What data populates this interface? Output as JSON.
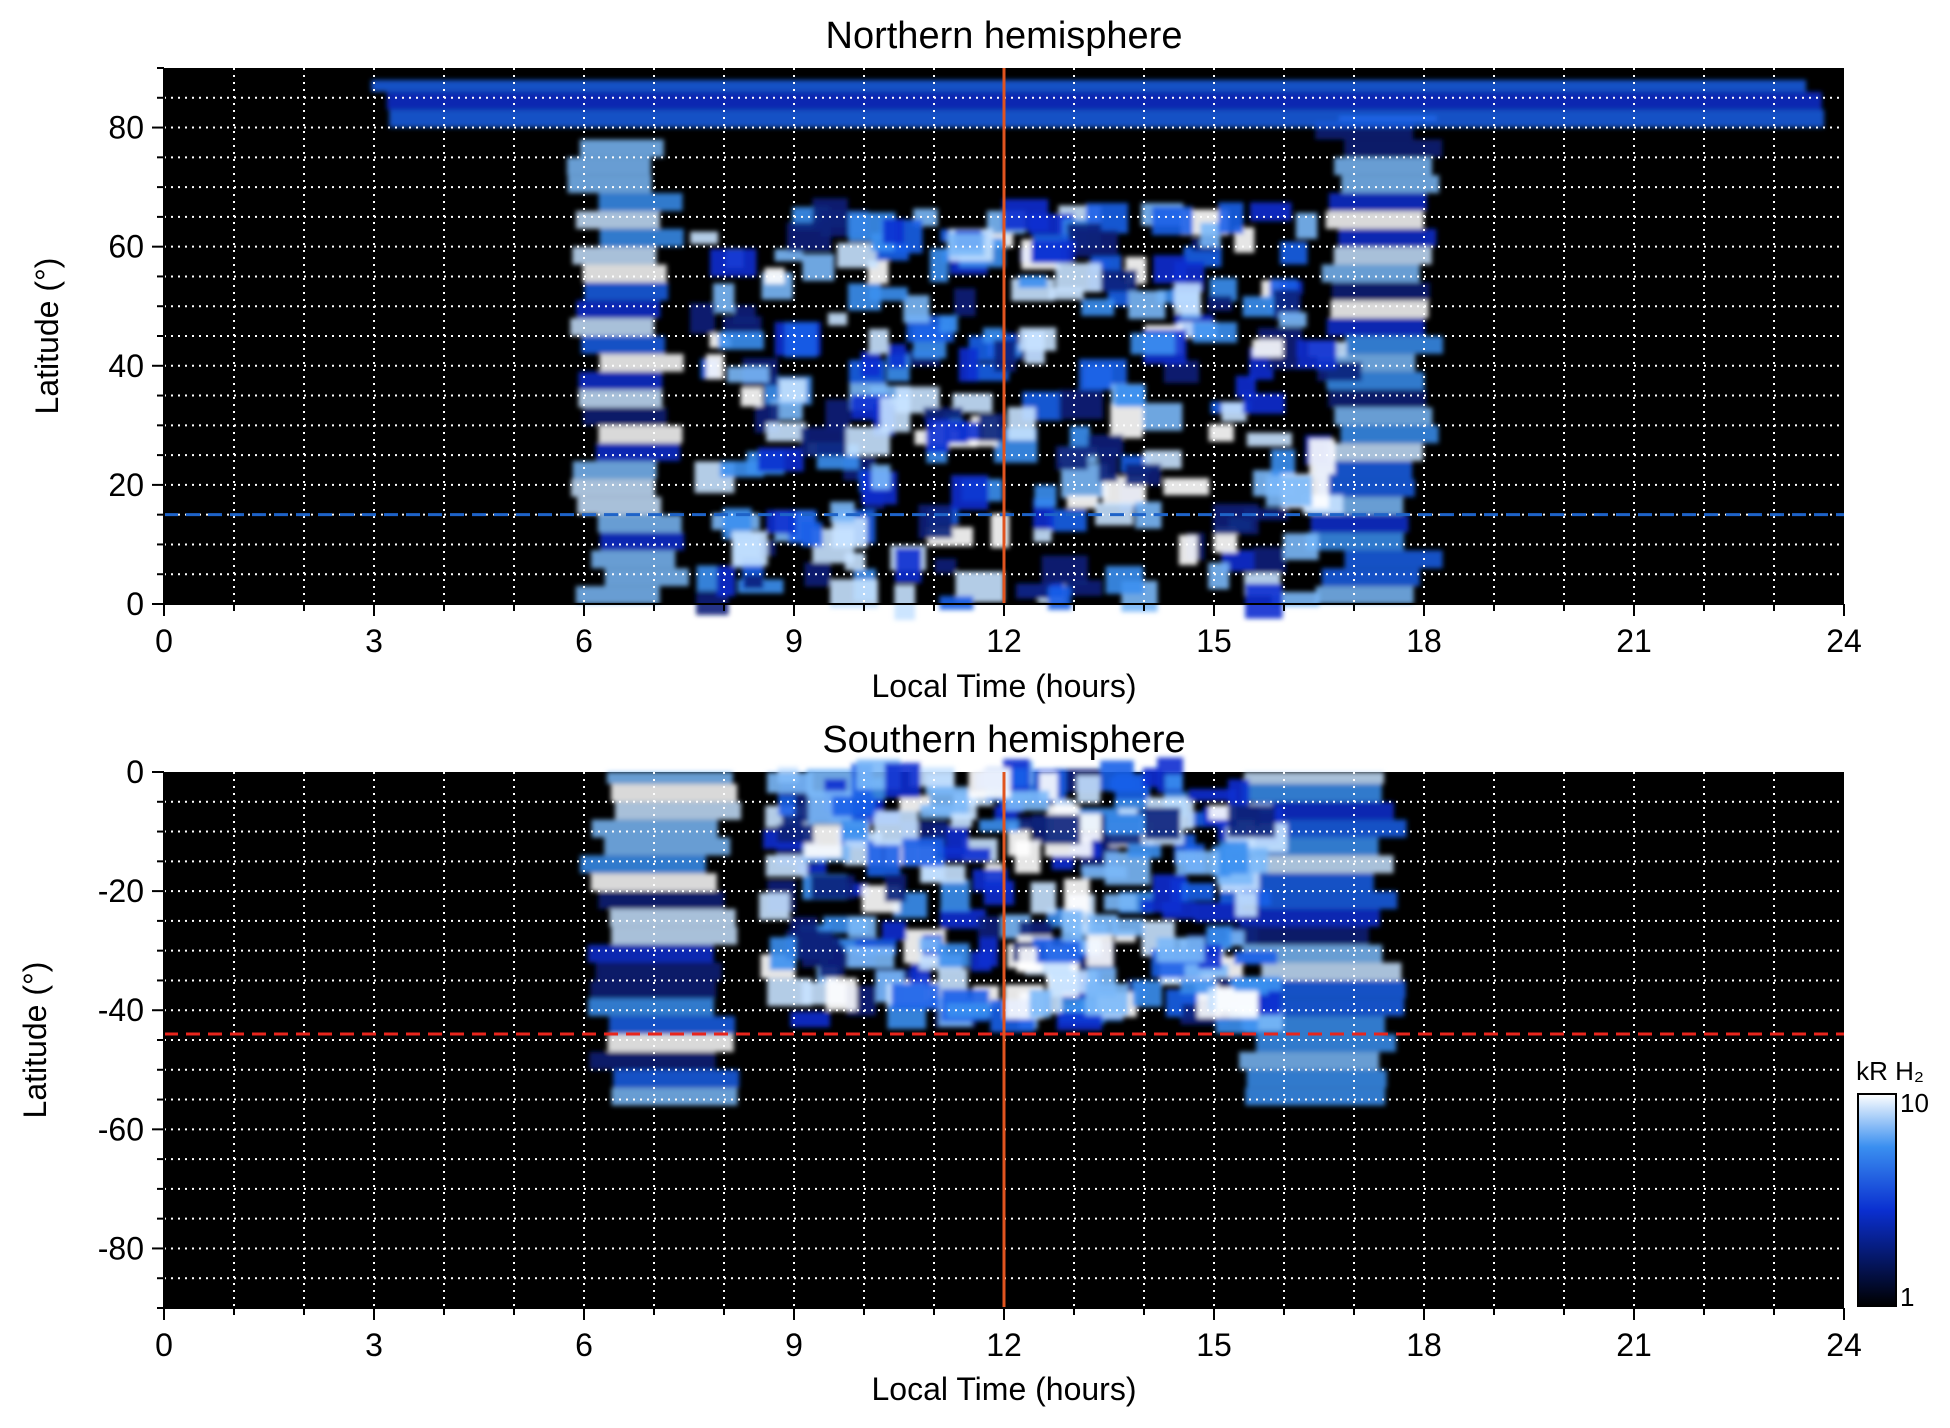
{
  "colors": {
    "background": "#000000",
    "grid": "#ffffff",
    "noon_line": "#e0541f",
    "north_dash": "#1e63c8",
    "south_dash": "#e8251c",
    "scale_low": "#000000",
    "scale_mid": "#0a2fd0",
    "scale_high": "#ffffff"
  },
  "colorbar": {
    "title": "kR H₂",
    "label_max": "10",
    "label_min": "1"
  },
  "chart_data": [
    {
      "type": "heatmap",
      "title": "Northern hemisphere",
      "xlabel": "Local Time (hours)",
      "ylabel": "Latitude (°)",
      "xlim": [
        0,
        24
      ],
      "ylim": [
        0,
        90
      ],
      "xticks": [
        "0",
        "3",
        "6",
        "9",
        "12",
        "15",
        "18",
        "21",
        "24"
      ],
      "yticks": [
        "0",
        "20",
        "40",
        "60",
        "80"
      ],
      "ytick_values": [
        0,
        20,
        40,
        60,
        80
      ],
      "grid": true,
      "vertical_line_lt": 12,
      "dashed_line_lat": 15,
      "dashed_line_color": "north_dash",
      "colorscale": "log",
      "zlim": [
        1,
        10
      ],
      "zunits": "kR H₂",
      "bands": [
        {
          "lt_start": 6.0,
          "lt_end": 7.2,
          "lat_min": 0,
          "lat_max": 78
        },
        {
          "lt_start": 16.6,
          "lt_end": 18.0,
          "lat_min": 0,
          "lat_max": 82
        },
        {
          "lt_start": 3.0,
          "lt_end": 23.5,
          "lat_min": 80,
          "lat_max": 88
        }
      ],
      "dayside_patches": {
        "lt_min": 7.5,
        "lt_max": 16.5,
        "lat_min": 0,
        "lat_max": 66
      }
    },
    {
      "type": "heatmap",
      "title": "Southern hemisphere",
      "xlabel": "Local Time (hours)",
      "ylabel": "Latitude (°)",
      "xlim": [
        0,
        24
      ],
      "ylim": [
        -90,
        0
      ],
      "xticks": [
        "0",
        "3",
        "6",
        "9",
        "12",
        "15",
        "18",
        "21",
        "24"
      ],
      "yticks": [
        "0",
        "-20",
        "-40",
        "-60",
        "-80"
      ],
      "ytick_values": [
        0,
        -20,
        -40,
        -60,
        -80
      ],
      "grid": true,
      "vertical_line_lt": 12,
      "dashed_line_lat": -44,
      "dashed_line_color": "south_dash",
      "colorscale": "log",
      "zlim": [
        1,
        10
      ],
      "zunits": "kR H₂",
      "bands": [
        {
          "lt_start": 6.2,
          "lt_end": 8.0,
          "lat_min": -56,
          "lat_max": 0
        },
        {
          "lt_start": 15.5,
          "lt_end": 17.5,
          "lat_min": -56,
          "lat_max": 0
        }
      ],
      "dayside_patches": {
        "lt_min": 8.5,
        "lt_max": 15.5,
        "lat_min": -42,
        "lat_max": 0
      }
    }
  ]
}
